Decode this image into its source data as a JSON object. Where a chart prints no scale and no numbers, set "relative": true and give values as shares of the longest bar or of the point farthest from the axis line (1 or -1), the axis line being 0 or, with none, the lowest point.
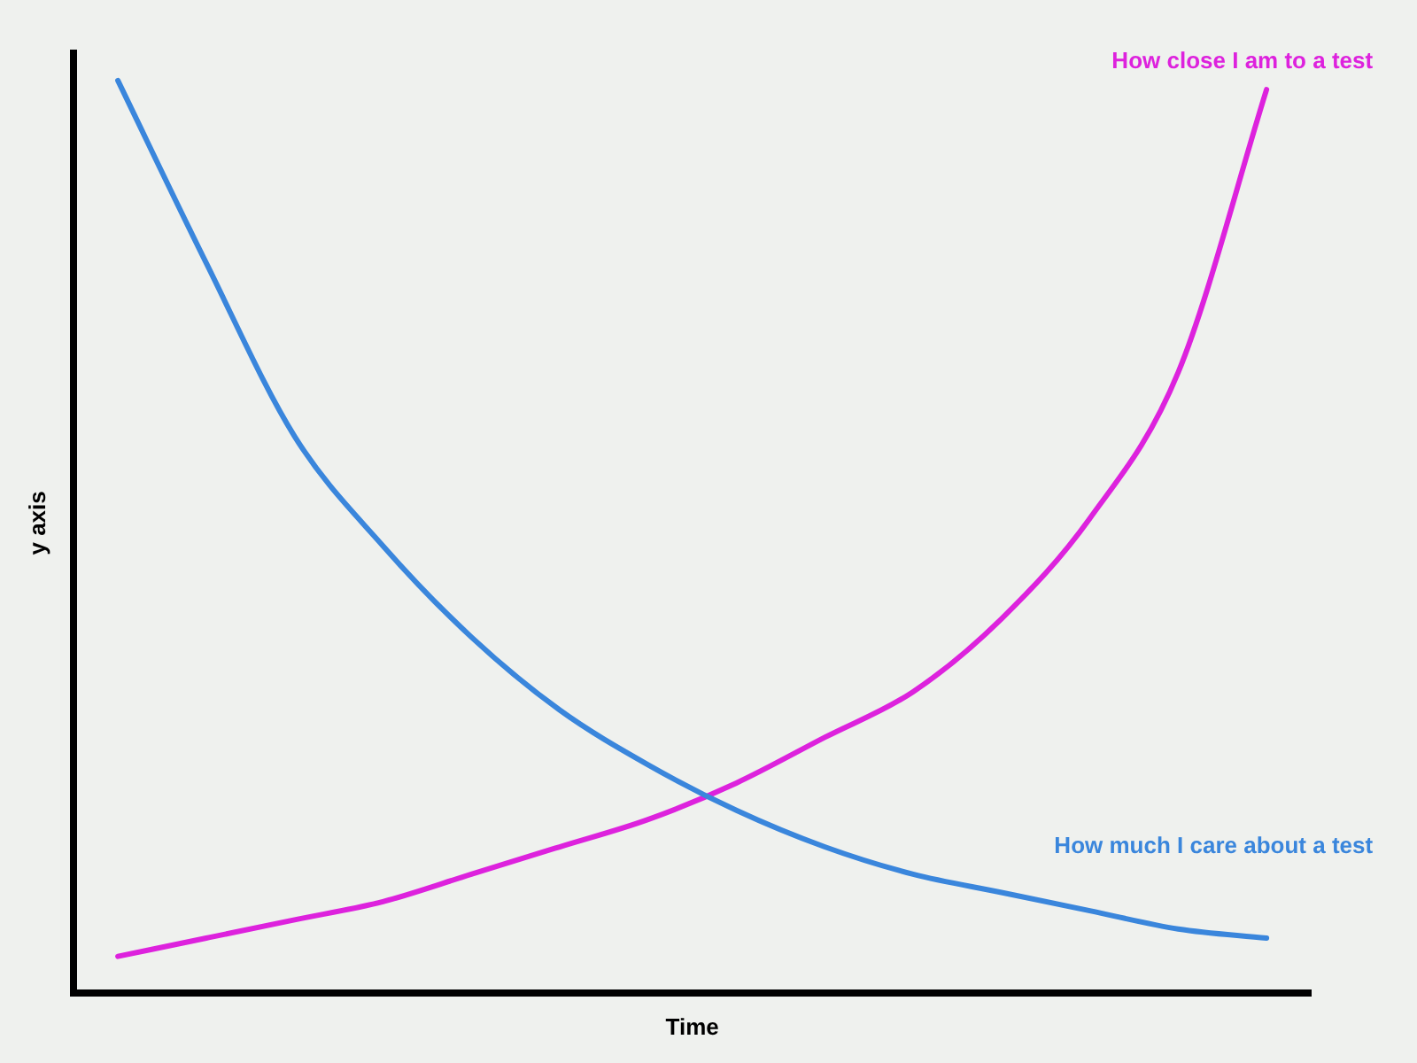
{
  "chart_data": {
    "type": "line",
    "relative": true,
    "xlabel": "Time",
    "ylabel": "y axis",
    "categories": [
      null,
      null,
      null,
      null,
      null,
      null,
      null,
      null,
      null,
      null,
      null,
      null,
      null,
      null
    ],
    "series": [
      {
        "name": "How much I care about a test",
        "color": "#3a86dc",
        "values": [
          1.0,
          0.8,
          0.61,
          0.49,
          0.39,
          0.31,
          0.25,
          0.2,
          0.16,
          0.13,
          0.11,
          0.09,
          0.07,
          0.06
        ]
      },
      {
        "name": "How close I am to a test",
        "color": "#dd22dd",
        "values": [
          0.04,
          0.06,
          0.08,
          0.1,
          0.13,
          0.16,
          0.19,
          0.23,
          0.28,
          0.33,
          0.41,
          0.52,
          0.68,
          0.99
        ]
      }
    ],
    "grid": false,
    "legend": false,
    "marker": "none",
    "line_style": "solid"
  }
}
